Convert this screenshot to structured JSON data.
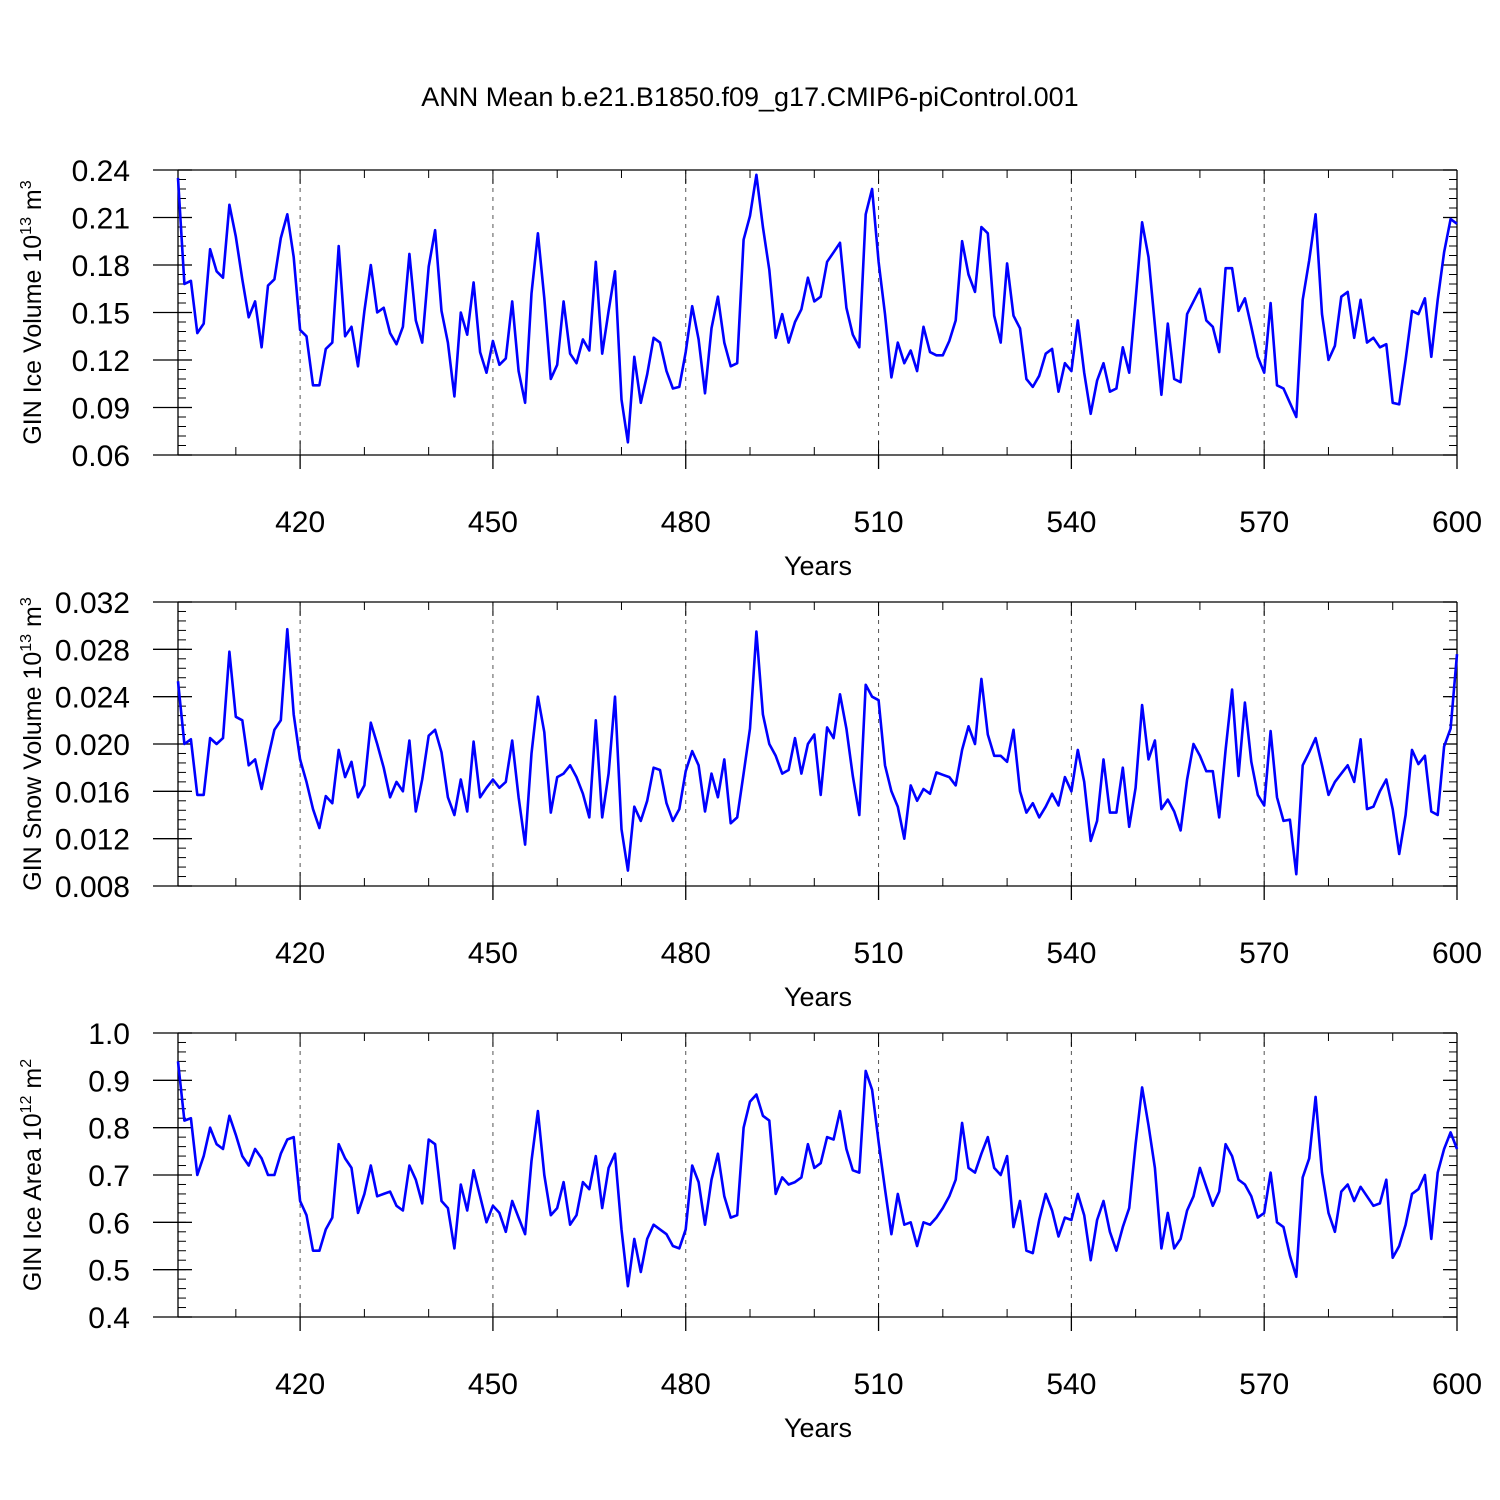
{
  "title": "ANN Mean b.e21.B1850.f09_g17.CMIP6-piControl.001",
  "style": {
    "line_color": "#0000ff",
    "axis_color": "#000000",
    "grid_color": "#555555"
  },
  "chart_data": [
    {
      "type": "line",
      "xlabel": "Years",
      "ylabel": "GIN Ice Volume 10",
      "ylabel_exp": "13",
      "ylabel_unit": " m",
      "ylabel_unit_exp": "3",
      "xlim": [
        401,
        600
      ],
      "ylim": [
        0.06,
        0.24
      ],
      "xticks": [
        420,
        450,
        480,
        510,
        540,
        570,
        600
      ],
      "yticks": [
        "0.06",
        "0.09",
        "0.12",
        "0.15",
        "0.18",
        "0.21",
        "0.24"
      ],
      "grid": "vertical dashed at x ticks",
      "x_start": 401,
      "values": [
        0.235,
        0.168,
        0.17,
        0.137,
        0.143,
        0.19,
        0.176,
        0.172,
        0.218,
        0.198,
        0.171,
        0.147,
        0.157,
        0.128,
        0.167,
        0.171,
        0.197,
        0.212,
        0.185,
        0.139,
        0.135,
        0.104,
        0.104,
        0.127,
        0.131,
        0.192,
        0.135,
        0.141,
        0.116,
        0.151,
        0.18,
        0.15,
        0.153,
        0.137,
        0.13,
        0.141,
        0.187,
        0.145,
        0.131,
        0.179,
        0.202,
        0.151,
        0.131,
        0.097,
        0.15,
        0.136,
        0.169,
        0.125,
        0.112,
        0.132,
        0.117,
        0.121,
        0.157,
        0.113,
        0.093,
        0.162,
        0.2,
        0.159,
        0.108,
        0.117,
        0.157,
        0.124,
        0.118,
        0.133,
        0.126,
        0.182,
        0.124,
        0.151,
        0.176,
        0.095,
        0.068,
        0.122,
        0.093,
        0.111,
        0.134,
        0.131,
        0.113,
        0.102,
        0.103,
        0.125,
        0.154,
        0.133,
        0.099,
        0.14,
        0.16,
        0.131,
        0.116,
        0.118,
        0.196,
        0.211,
        0.237,
        0.204,
        0.177,
        0.134,
        0.149,
        0.131,
        0.144,
        0.152,
        0.172,
        0.157,
        0.16,
        0.182,
        0.188,
        0.194,
        0.153,
        0.136,
        0.128,
        0.212,
        0.228,
        0.182,
        0.149,
        0.109,
        0.131,
        0.118,
        0.126,
        0.113,
        0.141,
        0.125,
        0.123,
        0.123,
        0.132,
        0.145,
        0.195,
        0.174,
        0.163,
        0.204,
        0.2,
        0.148,
        0.131,
        0.181,
        0.148,
        0.14,
        0.108,
        0.103,
        0.11,
        0.124,
        0.127,
        0.1,
        0.118,
        0.113,
        0.145,
        0.112,
        0.086,
        0.107,
        0.118,
        0.1,
        0.102,
        0.128,
        0.112,
        0.158,
        0.207,
        0.185,
        0.142,
        0.098,
        0.143,
        0.108,
        0.106,
        0.149,
        0.157,
        0.165,
        0.145,
        0.141,
        0.125,
        0.178,
        0.178,
        0.151,
        0.159,
        0.141,
        0.122,
        0.112,
        0.156,
        0.104,
        0.102,
        0.093,
        0.084,
        0.158,
        0.183,
        0.212,
        0.149,
        0.12,
        0.129,
        0.16,
        0.163,
        0.134,
        0.158,
        0.131,
        0.134,
        0.128,
        0.13,
        0.093,
        0.092,
        0.12,
        0.151,
        0.149,
        0.159,
        0.122,
        0.158,
        0.188,
        0.209,
        0.206
      ]
    },
    {
      "type": "line",
      "xlabel": "Years",
      "ylabel": "GIN Snow Volume 10",
      "ylabel_exp": "13",
      "ylabel_unit": " m",
      "ylabel_unit_exp": "3",
      "xlim": [
        401,
        600
      ],
      "ylim": [
        0.008,
        0.032
      ],
      "xticks": [
        420,
        450,
        480,
        510,
        540,
        570,
        600
      ],
      "yticks": [
        "0.008",
        "0.012",
        "0.016",
        "0.020",
        "0.024",
        "0.028",
        "0.032"
      ],
      "grid": "vertical dashed at x ticks",
      "x_start": 401,
      "values": [
        0.0253,
        0.02,
        0.0204,
        0.0157,
        0.0157,
        0.0205,
        0.02,
        0.0205,
        0.0278,
        0.0223,
        0.022,
        0.0182,
        0.0187,
        0.0162,
        0.0188,
        0.0212,
        0.022,
        0.0297,
        0.0225,
        0.0187,
        0.0168,
        0.0145,
        0.0129,
        0.0156,
        0.015,
        0.0195,
        0.0172,
        0.0185,
        0.0155,
        0.0165,
        0.0218,
        0.02,
        0.018,
        0.0155,
        0.0168,
        0.016,
        0.0203,
        0.0143,
        0.017,
        0.0207,
        0.0212,
        0.0193,
        0.0155,
        0.014,
        0.017,
        0.0143,
        0.0202,
        0.0155,
        0.0163,
        0.017,
        0.0163,
        0.0168,
        0.0203,
        0.0155,
        0.0115,
        0.0192,
        0.024,
        0.021,
        0.0142,
        0.0172,
        0.0175,
        0.0182,
        0.0172,
        0.0158,
        0.0138,
        0.022,
        0.0138,
        0.0175,
        0.024,
        0.0128,
        0.0093,
        0.0147,
        0.0135,
        0.0152,
        0.018,
        0.0178,
        0.015,
        0.0135,
        0.0145,
        0.0177,
        0.0194,
        0.0182,
        0.0143,
        0.0175,
        0.0155,
        0.0187,
        0.0133,
        0.0138,
        0.0175,
        0.0213,
        0.0295,
        0.0225,
        0.02,
        0.019,
        0.0175,
        0.0178,
        0.0205,
        0.0175,
        0.02,
        0.0208,
        0.0157,
        0.0214,
        0.0205,
        0.0242,
        0.0213,
        0.0173,
        0.014,
        0.025,
        0.024,
        0.0237,
        0.0182,
        0.016,
        0.0147,
        0.012,
        0.0165,
        0.0152,
        0.0162,
        0.0158,
        0.0176,
        0.0174,
        0.0172,
        0.0165,
        0.0195,
        0.0215,
        0.02,
        0.0255,
        0.0208,
        0.019,
        0.019,
        0.0185,
        0.0212,
        0.016,
        0.0142,
        0.015,
        0.0138,
        0.0147,
        0.0158,
        0.0148,
        0.0172,
        0.016,
        0.0195,
        0.0168,
        0.0118,
        0.0135,
        0.0187,
        0.0142,
        0.0142,
        0.018,
        0.013,
        0.0163,
        0.0233,
        0.0187,
        0.0203,
        0.0145,
        0.0153,
        0.0143,
        0.0127,
        0.017,
        0.02,
        0.019,
        0.0177,
        0.0177,
        0.0138,
        0.0195,
        0.0246,
        0.0173,
        0.0235,
        0.0185,
        0.0157,
        0.0148,
        0.0211,
        0.0155,
        0.0135,
        0.0136,
        0.009,
        0.0182,
        0.0193,
        0.0205,
        0.0182,
        0.0157,
        0.0168,
        0.0175,
        0.0182,
        0.0168,
        0.0204,
        0.0145,
        0.0147,
        0.016,
        0.017,
        0.0145,
        0.0107,
        0.014,
        0.0195,
        0.0183,
        0.019,
        0.0143,
        0.014,
        0.0198,
        0.0213,
        0.0276
      ]
    },
    {
      "type": "line",
      "xlabel": "Years",
      "ylabel": "GIN Ice Area 10",
      "ylabel_exp": "12",
      "ylabel_unit": " m",
      "ylabel_unit_exp": "2",
      "xlim": [
        401,
        600
      ],
      "ylim": [
        0.4,
        1.0
      ],
      "xticks": [
        420,
        450,
        480,
        510,
        540,
        570,
        600
      ],
      "yticks": [
        "0.4",
        "0.5",
        "0.6",
        "0.7",
        "0.8",
        "0.9",
        "1.0"
      ],
      "grid": "vertical dashed at x ticks",
      "x_start": 401,
      "values": [
        0.94,
        0.815,
        0.82,
        0.7,
        0.74,
        0.8,
        0.765,
        0.755,
        0.825,
        0.785,
        0.74,
        0.72,
        0.755,
        0.735,
        0.7,
        0.7,
        0.745,
        0.775,
        0.78,
        0.645,
        0.615,
        0.54,
        0.54,
        0.585,
        0.61,
        0.765,
        0.735,
        0.715,
        0.62,
        0.66,
        0.72,
        0.655,
        0.66,
        0.665,
        0.635,
        0.625,
        0.72,
        0.69,
        0.64,
        0.775,
        0.765,
        0.645,
        0.63,
        0.545,
        0.68,
        0.625,
        0.71,
        0.655,
        0.6,
        0.635,
        0.62,
        0.58,
        0.645,
        0.61,
        0.575,
        0.73,
        0.835,
        0.7,
        0.615,
        0.63,
        0.685,
        0.595,
        0.615,
        0.685,
        0.67,
        0.74,
        0.63,
        0.715,
        0.745,
        0.585,
        0.465,
        0.565,
        0.495,
        0.565,
        0.595,
        0.585,
        0.575,
        0.55,
        0.545,
        0.585,
        0.72,
        0.685,
        0.595,
        0.69,
        0.745,
        0.655,
        0.61,
        0.615,
        0.8,
        0.855,
        0.87,
        0.825,
        0.815,
        0.66,
        0.695,
        0.68,
        0.685,
        0.695,
        0.765,
        0.715,
        0.725,
        0.78,
        0.775,
        0.835,
        0.755,
        0.71,
        0.705,
        0.92,
        0.88,
        0.77,
        0.67,
        0.575,
        0.66,
        0.595,
        0.6,
        0.55,
        0.6,
        0.595,
        0.61,
        0.63,
        0.655,
        0.69,
        0.81,
        0.715,
        0.705,
        0.745,
        0.78,
        0.715,
        0.7,
        0.74,
        0.59,
        0.645,
        0.54,
        0.535,
        0.605,
        0.66,
        0.625,
        0.57,
        0.61,
        0.605,
        0.66,
        0.615,
        0.52,
        0.605,
        0.645,
        0.58,
        0.54,
        0.59,
        0.63,
        0.765,
        0.885,
        0.805,
        0.715,
        0.545,
        0.62,
        0.545,
        0.565,
        0.625,
        0.655,
        0.715,
        0.675,
        0.635,
        0.665,
        0.765,
        0.74,
        0.69,
        0.68,
        0.655,
        0.61,
        0.62,
        0.705,
        0.6,
        0.59,
        0.53,
        0.485,
        0.695,
        0.735,
        0.865,
        0.705,
        0.62,
        0.58,
        0.665,
        0.68,
        0.645,
        0.675,
        0.655,
        0.635,
        0.64,
        0.69,
        0.525,
        0.55,
        0.595,
        0.66,
        0.67,
        0.7,
        0.565,
        0.705,
        0.755,
        0.79,
        0.755
      ]
    }
  ]
}
